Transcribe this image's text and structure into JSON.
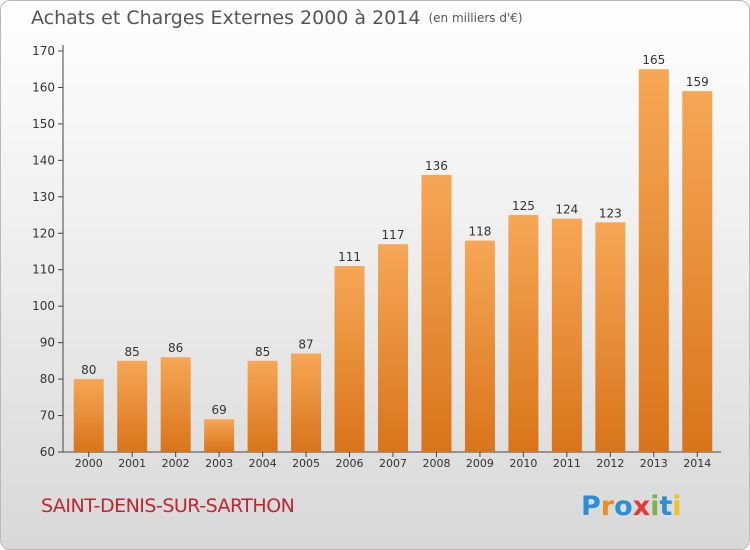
{
  "chart_data": {
    "type": "bar",
    "title": "Achats et Charges Externes 2000 à 2014",
    "unit": "(en milliers d'€)",
    "categories": [
      "2000",
      "2001",
      "2002",
      "2003",
      "2004",
      "2005",
      "2006",
      "2007",
      "2008",
      "2009",
      "2010",
      "2011",
      "2012",
      "2013",
      "2014"
    ],
    "values": [
      80,
      85,
      86,
      69,
      85,
      87,
      111,
      117,
      136,
      118,
      125,
      124,
      123,
      165,
      159
    ],
    "ylim": [
      60,
      170
    ],
    "yticks": [
      60,
      70,
      80,
      90,
      100,
      110,
      120,
      130,
      140,
      150,
      160,
      170
    ],
    "grid": false,
    "bar_color_light": "#f6a755",
    "bar_color_dark": "#d9741a",
    "data_labels": true
  },
  "footer": {
    "place_name": "SAINT-DENIS-SUR-SARTHON",
    "place_color": "#c0262e",
    "logo_text": "Proxiti",
    "logo_colors": [
      "#2a8fd6",
      "#f28b1e",
      "#2a8fd6",
      "#e53935",
      "#7cb342",
      "#2a8fd6",
      "#f2c11e"
    ]
  }
}
